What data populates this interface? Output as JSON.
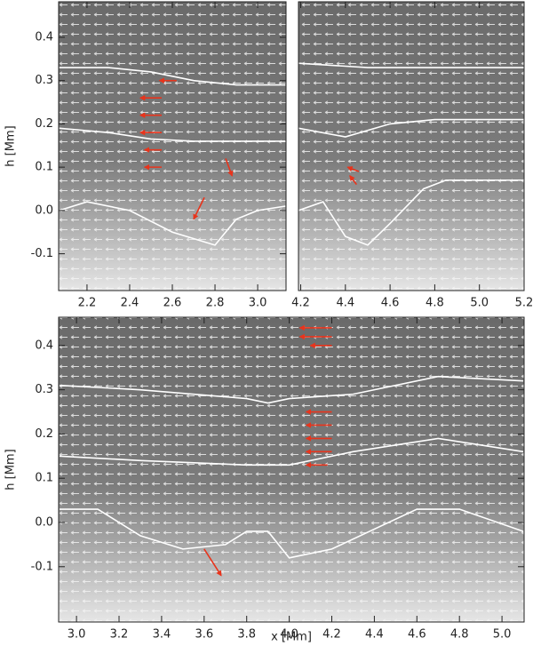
{
  "chart_data": [
    {
      "type": "vector-field",
      "frame": [
        66,
        2,
        322,
        327
      ],
      "xlim": [
        2.067,
        3.133
      ],
      "ylim": [
        -0.185,
        0.482
      ],
      "xticks": [
        2.2,
        2.4,
        2.6,
        2.8,
        {
          "value": 3,
          "label": "3.0"
        }
      ],
      "yticks": [
        -0.1,
        {
          "value": 0,
          "label": "0.0"
        },
        0.1,
        0.2,
        0.3,
        0.4
      ],
      "ylabel": "h [Mm]",
      "contours": [
        {
          "color": "#ffffff",
          "x": [
            2.07,
            2.3,
            2.5,
            2.7,
            2.9,
            3.13
          ],
          "values": [
            0.33,
            0.33,
            0.32,
            0.3,
            0.29,
            0.29
          ]
        },
        {
          "color": "#ffffff",
          "x": [
            2.07,
            2.3,
            2.5,
            2.7,
            2.9,
            3.13
          ],
          "values": [
            0.19,
            0.18,
            0.165,
            0.16,
            0.16,
            0.16
          ]
        },
        {
          "color": "#ffffff",
          "x": [
            2.07,
            2.2,
            2.4,
            2.6,
            2.8,
            2.9,
            3.0,
            3.13
          ],
          "values": [
            0.0,
            0.02,
            0.0,
            -0.05,
            -0.08,
            -0.02,
            0.0,
            0.01
          ]
        }
      ],
      "vectors": {
        "color": "#e8341c",
        "x": [
          2.62,
          2.55,
          2.55,
          2.55,
          2.55,
          2.55,
          2.85,
          2.75
        ],
        "values": [
          0.3,
          0.26,
          0.22,
          0.18,
          0.14,
          0.1,
          0.12,
          0.03
        ],
        "dx": [
          -0.08,
          -0.1,
          -0.1,
          -0.1,
          -0.08,
          -0.08,
          0.03,
          -0.05
        ],
        "dy": [
          0,
          0,
          0,
          0,
          0,
          0,
          -0.04,
          -0.05
        ]
      }
    },
    {
      "type": "vector-field",
      "frame": [
        336,
        2,
        590,
        327
      ],
      "xlim": [
        4.19,
        5.2
      ],
      "ylim": [
        -0.185,
        0.482
      ],
      "xticks": [
        4.2,
        4.4,
        4.6,
        4.8,
        {
          "value": 5,
          "label": "5.0"
        },
        5.2
      ],
      "contours": [
        {
          "color": "#ffffff",
          "x": [
            4.19,
            4.5,
            4.8,
            5.2
          ],
          "values": [
            0.34,
            0.33,
            0.33,
            0.33
          ]
        },
        {
          "color": "#ffffff",
          "x": [
            4.19,
            4.4,
            4.6,
            4.8,
            5.2
          ],
          "values": [
            0.19,
            0.17,
            0.2,
            0.21,
            0.21
          ]
        },
        {
          "color": "#ffffff",
          "x": [
            4.19,
            4.3,
            4.4,
            4.5,
            4.6,
            4.75,
            4.85,
            5.2
          ],
          "values": [
            0.0,
            0.02,
            -0.06,
            -0.08,
            -0.03,
            0.05,
            0.07,
            0.07
          ]
        }
      ],
      "vectors": {
        "color": "#e8341c",
        "x": [
          4.46,
          4.45
        ],
        "values": [
          0.09,
          0.06
        ],
        "dx": [
          -0.05,
          -0.03
        ],
        "dy": [
          0.01,
          0.02
        ]
      }
    },
    {
      "type": "vector-field",
      "frame": [
        66,
        357,
        590,
        700
      ],
      "xlim": [
        2.916,
        5.104
      ],
      "ylim": [
        -0.225,
        0.464
      ],
      "xticks": [
        {
          "value": 3,
          "label": "3.0"
        },
        3.2,
        3.4,
        3.6,
        3.8,
        {
          "value": 4,
          "label": "4.0"
        },
        4.2,
        4.4,
        4.6,
        4.8,
        {
          "value": 5,
          "label": "5.0"
        }
      ],
      "yticks": [
        -0.1,
        {
          "value": 0,
          "label": "0.0"
        },
        0.1,
        0.2,
        0.3,
        0.4
      ],
      "xlabel": "x [Mm]",
      "ylabel": "h [Mm]",
      "contours": [
        {
          "color": "#ffffff",
          "x": [
            2.92,
            3.3,
            3.8,
            3.9,
            4.0,
            4.3,
            4.7,
            5.1
          ],
          "values": [
            0.31,
            0.3,
            0.28,
            0.27,
            0.28,
            0.29,
            0.33,
            0.32
          ]
        },
        {
          "color": "#ffffff",
          "x": [
            2.92,
            3.3,
            3.8,
            4.0,
            4.3,
            4.7,
            5.1
          ],
          "values": [
            0.15,
            0.14,
            0.13,
            0.13,
            0.16,
            0.19,
            0.16
          ]
        },
        {
          "color": "#ffffff",
          "x": [
            2.92,
            3.1,
            3.3,
            3.5,
            3.7,
            3.8,
            3.9,
            4.0,
            4.2,
            4.6,
            4.8,
            5.1
          ],
          "values": [
            0.03,
            0.03,
            -0.03,
            -0.06,
            -0.05,
            -0.02,
            -0.02,
            -0.08,
            -0.06,
            0.03,
            0.03,
            -0.02
          ]
        }
      ],
      "vectors": {
        "color": "#e8341c",
        "x": [
          4.2,
          4.2,
          4.2,
          4.2,
          4.2,
          4.2,
          4.2,
          4.18,
          3.6
        ],
        "values": [
          0.44,
          0.42,
          0.4,
          0.25,
          0.22,
          0.19,
          0.16,
          0.13,
          -0.06
        ],
        "dx": [
          -0.15,
          -0.15,
          -0.1,
          -0.12,
          -0.12,
          -0.12,
          -0.12,
          -0.1,
          0.08
        ],
        "dy": [
          0,
          0,
          0,
          0,
          0,
          0,
          0,
          0,
          -0.06
        ]
      }
    }
  ]
}
